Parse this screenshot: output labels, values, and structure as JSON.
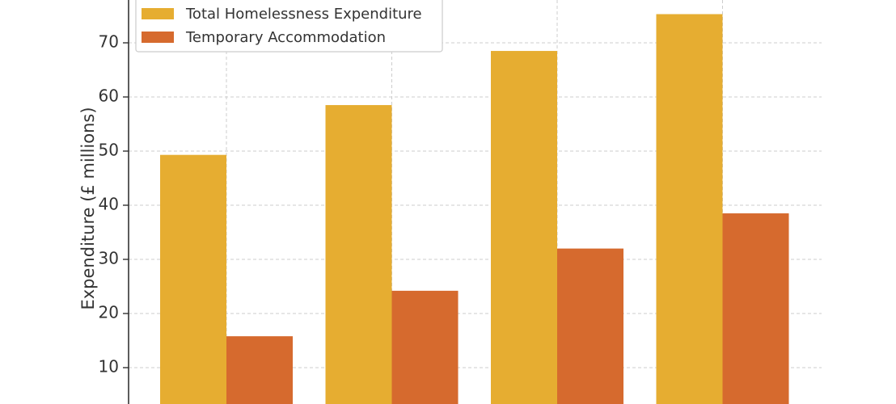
{
  "chart_data": {
    "type": "bar",
    "categories": [
      "",
      "",
      "",
      ""
    ],
    "series": [
      {
        "name": "Total Homelessness Expenditure",
        "color": "#E6AD31",
        "values": [
          49.3,
          58.5,
          68.5,
          75.3
        ]
      },
      {
        "name": "Temporary Accommodation",
        "color": "#D66A2E",
        "values": [
          15.8,
          24.2,
          32.0,
          38.5
        ]
      }
    ],
    "ylabel": "Expenditure (£ millions)",
    "ylim": [
      3.5,
      77.5
    ],
    "yticks": [
      10,
      20,
      30,
      40,
      50,
      60,
      70
    ],
    "grid": true,
    "legend_position": "top-left"
  }
}
